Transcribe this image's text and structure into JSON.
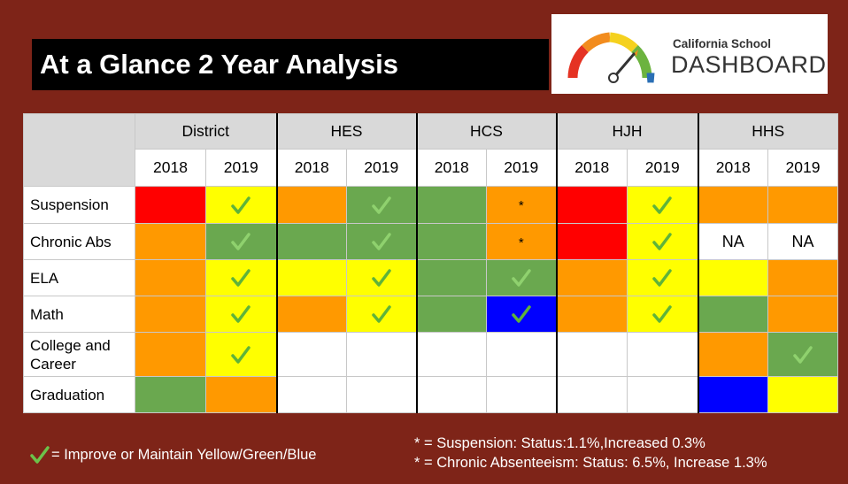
{
  "title": "At a Glance 2 Year Analysis",
  "logo": {
    "line1": "California School",
    "line2": "DASHBOARD"
  },
  "colors": {
    "red": "#ff0000",
    "orange": "#ff9900",
    "yellow": "#ffff00",
    "green": "#6aa84f",
    "blue": "#0000ff",
    "white": "#ffffff"
  },
  "table": {
    "groups": [
      "District",
      "HES",
      "HCS",
      "HJH",
      "HHS"
    ],
    "years": [
      "2018",
      "2019",
      "2018",
      "2019",
      "2018",
      "2019",
      "2018",
      "2019",
      "2018",
      "2019"
    ],
    "rows": [
      {
        "label": "Suspension",
        "cells": [
          {
            "color": "red"
          },
          {
            "color": "yellow",
            "check": true
          },
          {
            "color": "orange"
          },
          {
            "color": "green",
            "check": true
          },
          {
            "color": "green"
          },
          {
            "color": "orange",
            "text": "*"
          },
          {
            "color": "red"
          },
          {
            "color": "yellow",
            "check": true
          },
          {
            "color": "orange"
          },
          {
            "color": "orange"
          }
        ]
      },
      {
        "label": "Chronic Abs",
        "cells": [
          {
            "color": "orange"
          },
          {
            "color": "green",
            "check": true
          },
          {
            "color": "green"
          },
          {
            "color": "green",
            "check": true
          },
          {
            "color": "green"
          },
          {
            "color": "orange",
            "text": "*"
          },
          {
            "color": "red"
          },
          {
            "color": "yellow",
            "check": true
          },
          {
            "color": "white",
            "text": "NA"
          },
          {
            "color": "white",
            "text": "NA"
          }
        ]
      },
      {
        "label": "ELA",
        "cells": [
          {
            "color": "orange"
          },
          {
            "color": "yellow",
            "check": true
          },
          {
            "color": "yellow"
          },
          {
            "color": "yellow",
            "check": true
          },
          {
            "color": "green"
          },
          {
            "color": "green",
            "check": true
          },
          {
            "color": "orange"
          },
          {
            "color": "yellow",
            "check": true
          },
          {
            "color": "yellow"
          },
          {
            "color": "orange"
          }
        ]
      },
      {
        "label": "Math",
        "cells": [
          {
            "color": "orange"
          },
          {
            "color": "yellow",
            "check": true
          },
          {
            "color": "orange"
          },
          {
            "color": "yellow",
            "check": true
          },
          {
            "color": "green"
          },
          {
            "color": "blue",
            "check": true
          },
          {
            "color": "orange"
          },
          {
            "color": "yellow",
            "check": true
          },
          {
            "color": "green"
          },
          {
            "color": "orange"
          }
        ]
      },
      {
        "label": "College and Career",
        "cells": [
          {
            "color": "orange"
          },
          {
            "color": "yellow",
            "check": true
          },
          {
            "color": "white"
          },
          {
            "color": "white"
          },
          {
            "color": "white"
          },
          {
            "color": "white"
          },
          {
            "color": "white"
          },
          {
            "color": "white"
          },
          {
            "color": "orange"
          },
          {
            "color": "green",
            "check": true
          }
        ]
      },
      {
        "label": "Graduation",
        "cells": [
          {
            "color": "green"
          },
          {
            "color": "orange"
          },
          {
            "color": "white"
          },
          {
            "color": "white"
          },
          {
            "color": "white"
          },
          {
            "color": "white"
          },
          {
            "color": "white"
          },
          {
            "color": "white"
          },
          {
            "color": "blue"
          },
          {
            "color": "yellow"
          }
        ]
      }
    ]
  },
  "legend": {
    "text": "= Improve or Maintain Yellow/Green/Blue"
  },
  "notes": [
    "* = Suspension: Status:1.1%,Increased 0.3%",
    "* = Chronic Absenteeism: Status: 6.5%, Increase 1.3%"
  ]
}
